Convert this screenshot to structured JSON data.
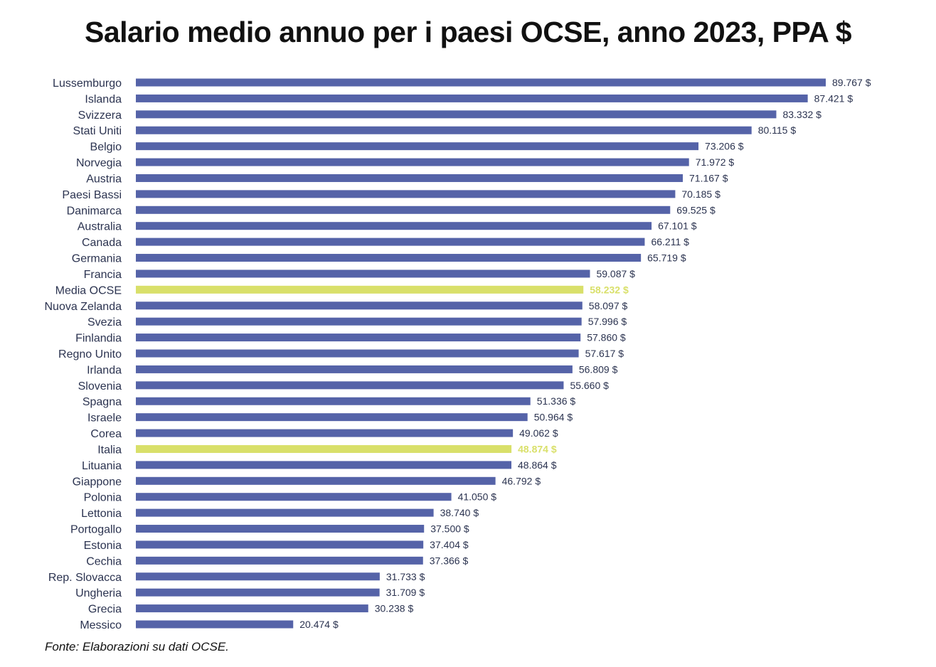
{
  "title": "Salario medio annuo per i paesi OCSE, anno 2023, PPA $",
  "source": "Fonte: Elaborazioni su dati OCSE.",
  "colors": {
    "bar": "#5563a8",
    "highlight": "#d9e06a",
    "text": "#2b3350"
  },
  "chart_data": {
    "type": "bar",
    "orientation": "horizontal",
    "categories": [
      "Lussemburgo",
      "Islanda",
      "Svizzera",
      "Stati Uniti",
      "Belgio",
      "Norvegia",
      "Austria",
      "Paesi Bassi",
      "Danimarca",
      "Australia",
      "Canada",
      "Germania",
      "Francia",
      "Media OCSE",
      "Nuova Zelanda",
      "Svezia",
      "Finlandia",
      "Regno Unito",
      "Irlanda",
      "Slovenia",
      "Spagna",
      "Israele",
      "Corea",
      "Italia",
      "Lituania",
      "Giappone",
      "Polonia",
      "Lettonia",
      "Portogallo",
      "Estonia",
      "Cechia",
      "Rep. Slovacca",
      "Ungheria",
      "Grecia",
      "Messico"
    ],
    "values": [
      89767,
      87421,
      83332,
      80115,
      73206,
      71972,
      71167,
      70185,
      69525,
      67101,
      66211,
      65719,
      59087,
      58232,
      58097,
      57996,
      57860,
      57617,
      56809,
      55660,
      51336,
      50964,
      49062,
      48874,
      48864,
      46792,
      41050,
      38740,
      37500,
      37404,
      37366,
      31733,
      31709,
      30238,
      20474
    ],
    "value_labels": [
      "89.767 $",
      "87.421 $",
      "83.332 $",
      "80.115 $",
      "73.206 $",
      "71.972 $",
      "71.167 $",
      "70.185 $",
      "69.525 $",
      "67.101 $",
      "66.211 $",
      "65.719 $",
      "59.087 $",
      "58.232 $",
      "58.097 $",
      "57.996 $",
      "57.860 $",
      "57.617 $",
      "56.809 $",
      "55.660 $",
      "51.336 $",
      "50.964 $",
      "49.062 $",
      "48.874 $",
      "48.864 $",
      "46.792 $",
      "41.050 $",
      "38.740 $",
      "37.500 $",
      "37.404 $",
      "37.366 $",
      "31.733 $",
      "31.709 $",
      "30.238 $",
      "20.474 $"
    ],
    "highlighted": [
      "Media OCSE",
      "Italia"
    ],
    "grid": false,
    "legend": "none"
  }
}
